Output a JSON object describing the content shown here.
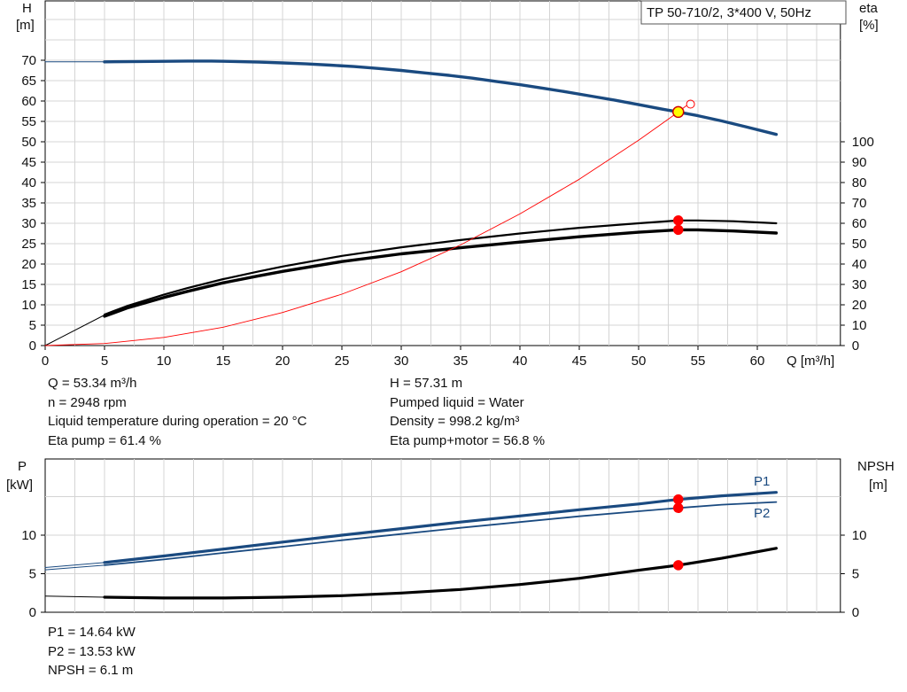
{
  "chart_data": [
    {
      "type": "line",
      "title": "TP 50-710/2, 3*400 V, 50Hz",
      "x_label": "Q [m³/h]",
      "y_label_left": [
        "H",
        "[m]"
      ],
      "y_label_right": [
        "eta",
        "[%]"
      ],
      "x_ticks": [
        0,
        5,
        10,
        15,
        20,
        25,
        30,
        35,
        40,
        45,
        50,
        55,
        60
      ],
      "xlim": [
        0,
        67
      ],
      "y_left_ticks": [
        0,
        5,
        10,
        15,
        20,
        25,
        30,
        35,
        40,
        45,
        50,
        55,
        60,
        65,
        70
      ],
      "ylim_left": [
        0,
        80
      ],
      "y_right_ticks": [
        0,
        10,
        20,
        30,
        40,
        50,
        60,
        70,
        80,
        90,
        100
      ],
      "ylim_right": [
        0,
        100
      ],
      "grid": true,
      "series": [
        {
          "key": "H",
          "color": "#1a4a80",
          "width": 3.4,
          "x": [
            5,
            8,
            10,
            12,
            14,
            16,
            18,
            20,
            22,
            24,
            26,
            28,
            30,
            32,
            34,
            36,
            38,
            40,
            42,
            44,
            46,
            48,
            50,
            52,
            53.34,
            55,
            57,
            59,
            61.6
          ],
          "y": [
            69.6,
            69.7,
            69.75,
            69.8,
            69.8,
            69.7,
            69.55,
            69.35,
            69.1,
            68.8,
            68.45,
            68.0,
            67.5,
            66.9,
            66.3,
            65.6,
            64.8,
            64.0,
            63.1,
            62.2,
            61.2,
            60.2,
            59.1,
            58.0,
            57.31,
            56.4,
            55.1,
            53.7,
            51.8
          ]
        },
        {
          "key": "H_ext",
          "color": "#1a4a80",
          "width": 1,
          "x": [
            0,
            5
          ],
          "y": [
            69.6,
            69.6
          ]
        },
        {
          "key": "eta_pump",
          "color": "#000000",
          "width": 2.2,
          "axis": "right",
          "x": [
            5,
            7,
            10,
            12,
            15,
            18,
            20,
            25,
            30,
            35,
            40,
            45,
            50,
            53.34,
            55,
            58,
            61.6
          ],
          "y": [
            15.2,
            19.6,
            25.0,
            28.2,
            32.6,
            36.4,
            38.8,
            44.0,
            48.2,
            51.8,
            55.0,
            57.8,
            60.0,
            61.4,
            61.4,
            61.0,
            60.0
          ]
        },
        {
          "key": "eta_total",
          "color": "#000000",
          "width": 3.4,
          "axis": "right",
          "x": [
            5,
            7,
            10,
            12,
            15,
            18,
            20,
            25,
            30,
            35,
            40,
            45,
            50,
            53.34,
            55,
            58,
            61.6
          ],
          "y": [
            14.4,
            18.6,
            23.6,
            26.6,
            30.8,
            34.2,
            36.4,
            41.2,
            45.0,
            48.0,
            50.8,
            53.4,
            55.6,
            56.8,
            56.8,
            56.2,
            55.2
          ]
        },
        {
          "key": "eta_ext",
          "color": "#000000",
          "width": 1,
          "axis": "right",
          "x": [
            0,
            5
          ],
          "y": [
            0,
            15.0
          ]
        },
        {
          "key": "system_curve",
          "color": "#ff0000",
          "width": 0.9,
          "x": [
            0,
            5,
            10,
            15,
            20,
            25,
            30,
            35,
            40,
            45,
            50,
            53.34,
            54.0
          ],
          "y": [
            0,
            0.5,
            2.0,
            4.5,
            8.1,
            12.6,
            18.1,
            24.7,
            32.3,
            40.8,
            50.4,
            57.31,
            58.8
          ]
        }
      ],
      "operating_points": [
        {
          "x": 53.34,
          "y": 57.31,
          "fill": "#ffff00",
          "stroke": "#cc0000",
          "r": 6
        },
        {
          "x": 53.34,
          "y": 61.4,
          "axis": "right",
          "fill": "#ff0000",
          "stroke": "#ff0000",
          "r": 5
        },
        {
          "x": 53.34,
          "y": 56.8,
          "axis": "right",
          "fill": "#ff0000",
          "stroke": "#ff0000",
          "r": 5
        }
      ]
    },
    {
      "type": "line",
      "y_label_left": [
        "P",
        "[kW]"
      ],
      "y_label_right": [
        "NPSH",
        "[m]"
      ],
      "y_left_ticks": [
        0,
        5,
        10
      ],
      "ylim_left": [
        0,
        17
      ],
      "y_right_ticks": [
        0,
        5,
        10
      ],
      "ylim_right": [
        0,
        17
      ],
      "grid": true,
      "series": [
        {
          "key": "P1",
          "label": "P1",
          "color": "#1a4a80",
          "width": 3.2,
          "x": [
            5,
            10,
            15,
            20,
            25,
            30,
            35,
            40,
            45,
            50,
            53.34,
            57,
            61.6
          ],
          "y": [
            6.45,
            7.3,
            8.2,
            9.1,
            10.0,
            10.85,
            11.7,
            12.5,
            13.3,
            14.05,
            14.64,
            15.1,
            15.55
          ]
        },
        {
          "key": "P1_ext",
          "color": "#1a4a80",
          "width": 1,
          "x": [
            0,
            5
          ],
          "y": [
            5.8,
            6.45
          ]
        },
        {
          "key": "P2",
          "label": "P2",
          "color": "#1a4a80",
          "width": 1.8,
          "x": [
            5,
            10,
            15,
            20,
            25,
            30,
            35,
            40,
            45,
            50,
            53.34,
            57,
            61.6
          ],
          "y": [
            6.1,
            6.85,
            7.7,
            8.5,
            9.35,
            10.15,
            10.95,
            11.7,
            12.45,
            13.1,
            13.53,
            13.95,
            14.3
          ]
        },
        {
          "key": "P2_ext",
          "color": "#1a4a80",
          "width": 1,
          "x": [
            0,
            5
          ],
          "y": [
            5.5,
            6.1
          ]
        },
        {
          "key": "NPSH",
          "color": "#000000",
          "width": 3.2,
          "axis": "right",
          "x": [
            5,
            10,
            15,
            20,
            25,
            30,
            35,
            40,
            45,
            50,
            53.34,
            57,
            61.6
          ],
          "y": [
            1.95,
            1.85,
            1.85,
            1.95,
            2.15,
            2.5,
            2.95,
            3.6,
            4.4,
            5.45,
            6.1,
            7.0,
            8.3
          ]
        },
        {
          "key": "NPSH_ext",
          "color": "#000000",
          "width": 1,
          "x": [
            0,
            5
          ],
          "y": [
            2.1,
            1.95
          ]
        }
      ],
      "operating_points": [
        {
          "x": 53.34,
          "y": 14.64,
          "fill": "#ff0000",
          "stroke": "#ff0000",
          "r": 5
        },
        {
          "x": 53.34,
          "y": 13.53,
          "fill": "#ff0000",
          "stroke": "#ff0000",
          "r": 5
        },
        {
          "x": 53.34,
          "y": 6.1,
          "axis": "right",
          "fill": "#ff0000",
          "stroke": "#ff0000",
          "r": 5
        }
      ]
    }
  ],
  "readouts_top_left": [
    "Q = 53.34 m³/h",
    "n = 2948 rpm",
    "Liquid temperature during operation = 20 °C",
    "Eta pump = 61.4 %"
  ],
  "readouts_top_right": [
    "H = 57.31 m",
    "Pumped liquid = Water",
    "Density = 998.2 kg/m³",
    "Eta pump+motor = 56.8 %"
  ],
  "readouts_bottom": [
    "P1 = 14.64 kW",
    "P2 = 13.53 kW",
    "NPSH = 6.1 m"
  ]
}
